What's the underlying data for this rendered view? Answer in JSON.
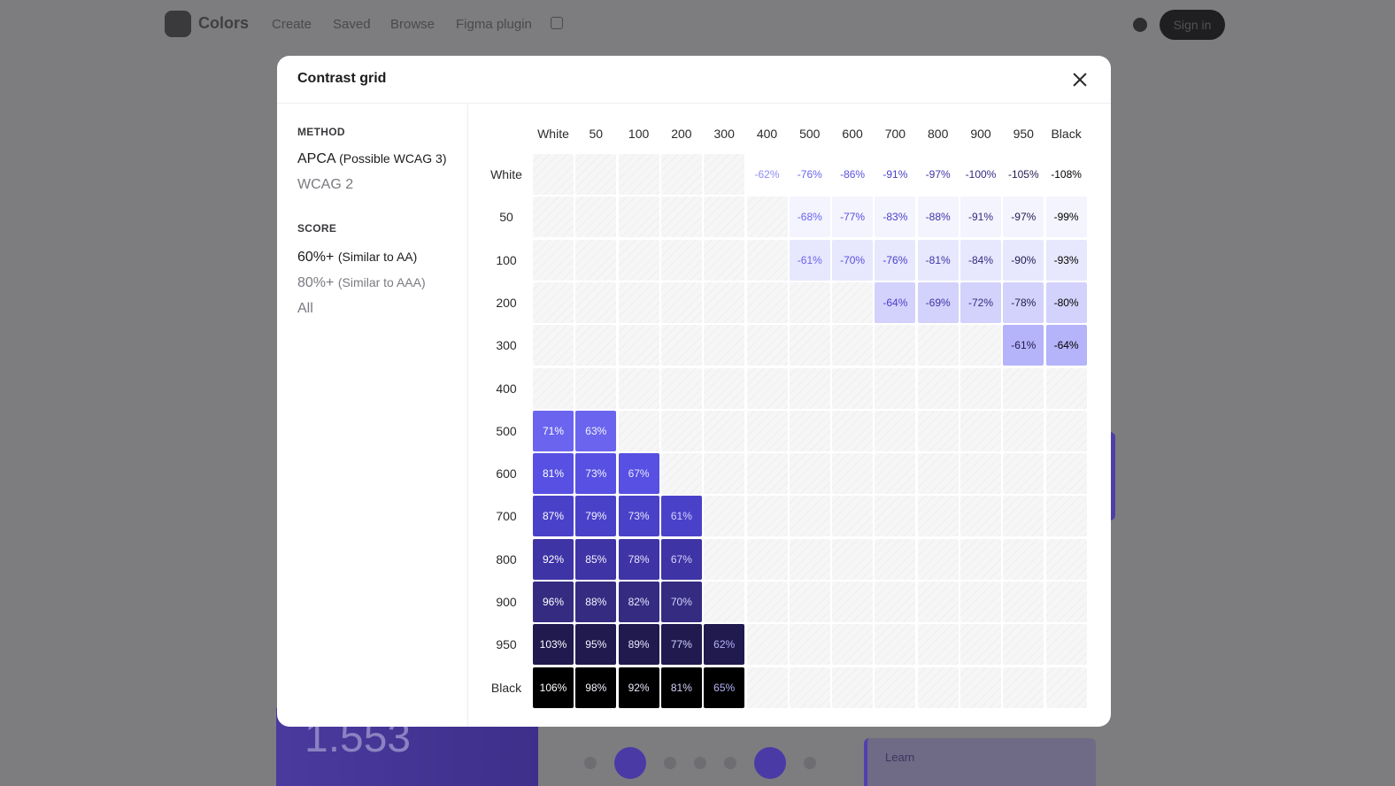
{
  "background": {
    "brand": "Colors",
    "nav_links": [
      "Create",
      "Saved",
      "Browse",
      "Figma plugin"
    ],
    "signin_label": "Sign in",
    "big_value": "1.553",
    "card_right_label": "Learn"
  },
  "modal": {
    "title": "Contrast grid",
    "method_heading": "METHOD",
    "method_options": [
      {
        "label": "APCA",
        "sub": "(Possible WCAG 3)",
        "selected": true
      },
      {
        "label": "WCAG 2",
        "sub": "",
        "selected": false
      }
    ],
    "score_heading": "SCORE",
    "score_options": [
      {
        "label": "60%+",
        "sub": "(Similar to AA)",
        "selected": true
      },
      {
        "label": "80%+",
        "sub": "(Similar to AAA)",
        "selected": false
      },
      {
        "label": "All",
        "sub": "",
        "selected": false
      }
    ]
  },
  "grid": {
    "columns": [
      "White",
      "50",
      "100",
      "200",
      "300",
      "400",
      "500",
      "600",
      "700",
      "800",
      "900",
      "950",
      "Black"
    ],
    "rows": [
      "White",
      "50",
      "100",
      "200",
      "300",
      "400",
      "500",
      "600",
      "700",
      "800",
      "900",
      "950",
      "Black"
    ],
    "palette": [
      "#ffffff",
      "#f4f4fe",
      "#e7e7fd",
      "#d3d2fc",
      "#b5b3f9",
      "#8f8bf4",
      "#6a64ef",
      "#5750e2",
      "#4a41c9",
      "#3e34a5",
      "#352c82",
      "#211a4f",
      "#000000"
    ],
    "cells": [
      [
        null,
        null,
        null,
        null,
        null,
        "-62%",
        "-76%",
        "-86%",
        "-91%",
        "-97%",
        "-100%",
        "-105%",
        "-108%"
      ],
      [
        null,
        null,
        null,
        null,
        null,
        null,
        "-68%",
        "-77%",
        "-83%",
        "-88%",
        "-91%",
        "-97%",
        "-99%"
      ],
      [
        null,
        null,
        null,
        null,
        null,
        null,
        "-61%",
        "-70%",
        "-76%",
        "-81%",
        "-84%",
        "-90%",
        "-93%"
      ],
      [
        null,
        null,
        null,
        null,
        null,
        null,
        null,
        null,
        "-64%",
        "-69%",
        "-72%",
        "-78%",
        "-80%"
      ],
      [
        null,
        null,
        null,
        null,
        null,
        null,
        null,
        null,
        null,
        null,
        null,
        "-61%",
        "-64%"
      ],
      [
        null,
        null,
        null,
        null,
        null,
        null,
        null,
        null,
        null,
        null,
        null,
        null,
        null
      ],
      [
        "71%",
        "63%",
        null,
        null,
        null,
        null,
        null,
        null,
        null,
        null,
        null,
        null,
        null
      ],
      [
        "81%",
        "73%",
        "67%",
        null,
        null,
        null,
        null,
        null,
        null,
        null,
        null,
        null,
        null
      ],
      [
        "87%",
        "79%",
        "73%",
        "61%",
        null,
        null,
        null,
        null,
        null,
        null,
        null,
        null,
        null
      ],
      [
        "92%",
        "85%",
        "78%",
        "67%",
        null,
        null,
        null,
        null,
        null,
        null,
        null,
        null,
        null
      ],
      [
        "96%",
        "88%",
        "82%",
        "70%",
        null,
        null,
        null,
        null,
        null,
        null,
        null,
        null,
        null
      ],
      [
        "103%",
        "95%",
        "89%",
        "77%",
        "62%",
        null,
        null,
        null,
        null,
        null,
        null,
        null,
        null
      ],
      [
        "106%",
        "98%",
        "92%",
        "81%",
        "65%",
        null,
        null,
        null,
        null,
        null,
        null,
        null,
        null
      ]
    ]
  }
}
